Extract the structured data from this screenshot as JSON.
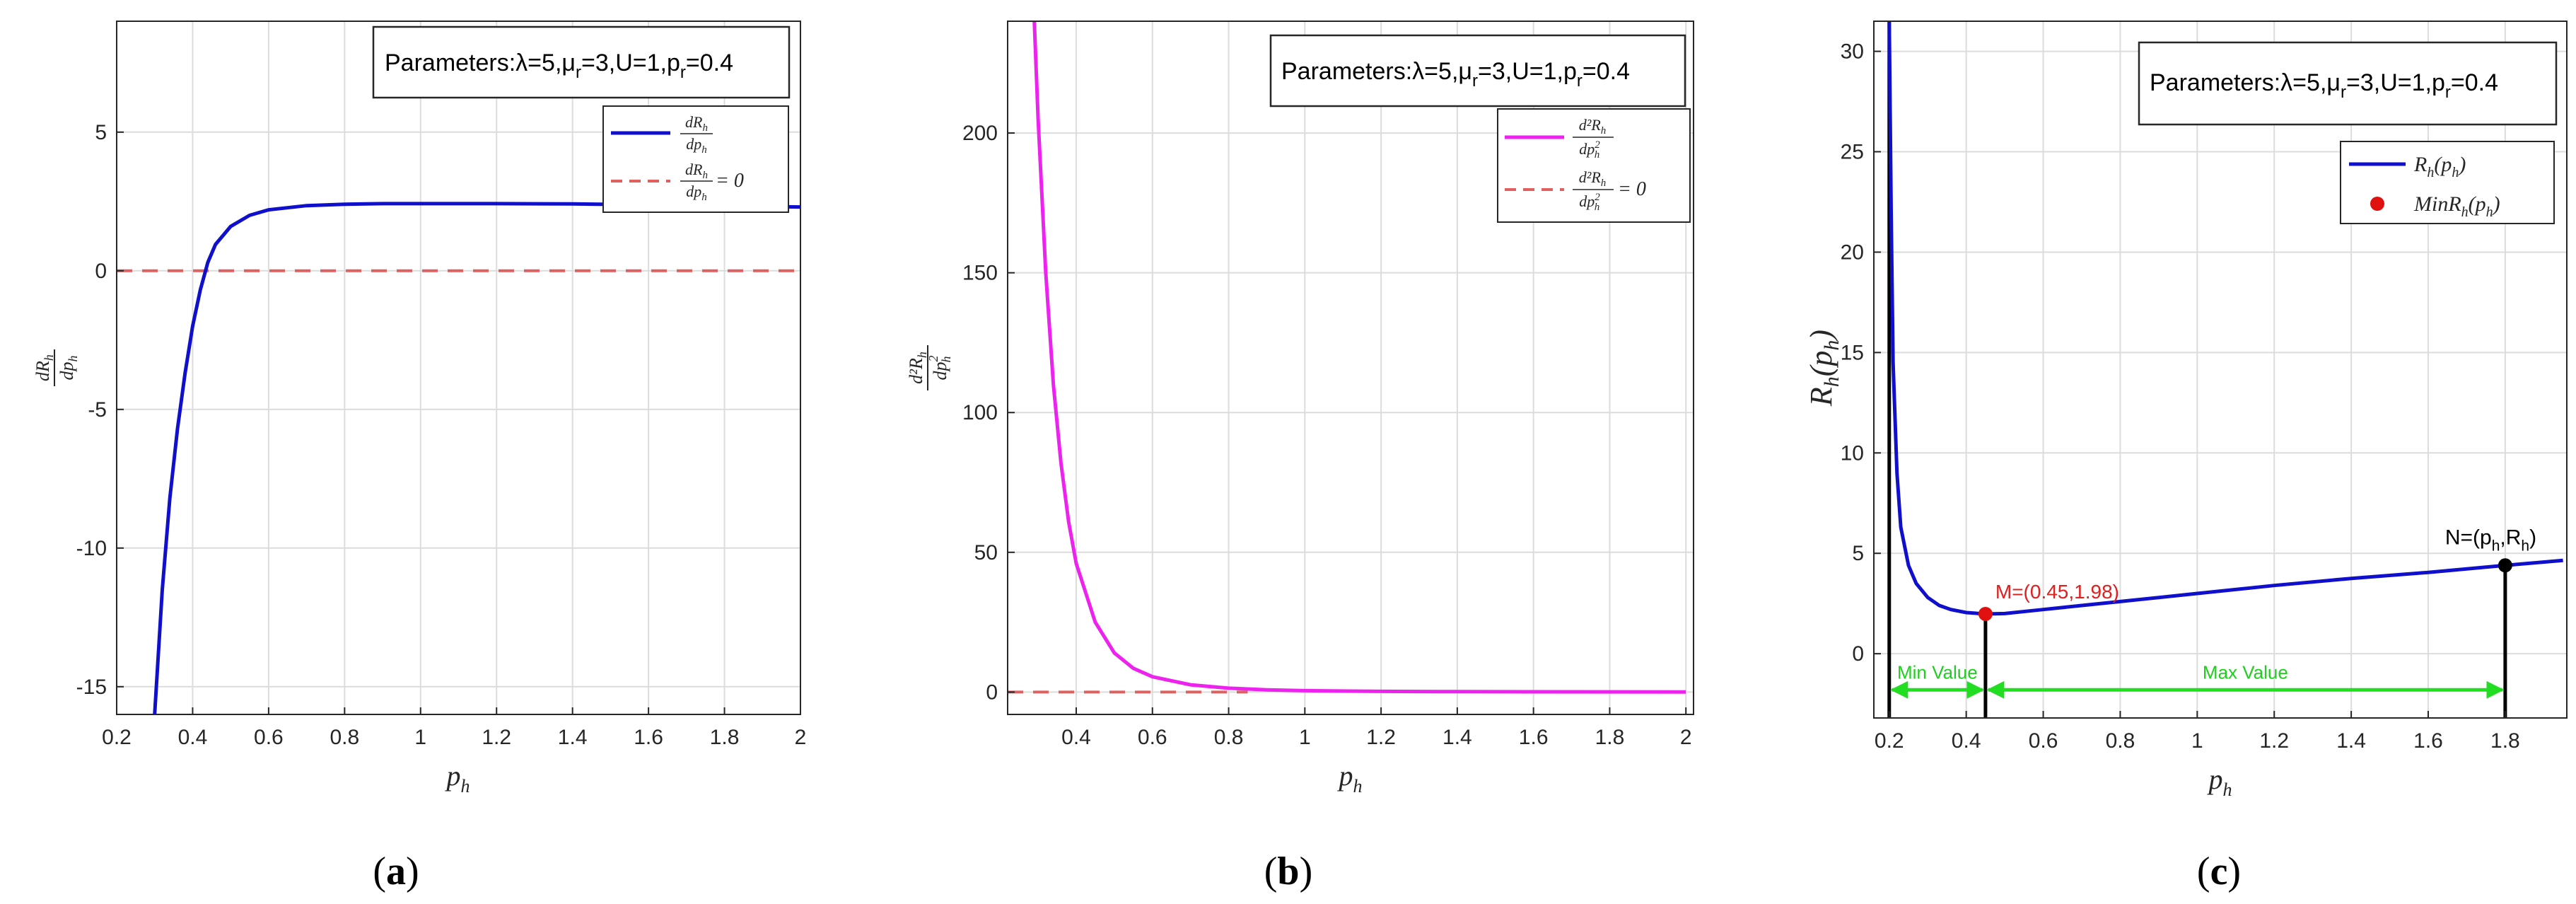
{
  "panels": [
    {
      "id": "a",
      "caption": {
        "open": "(",
        "letter": "a",
        "close": ")"
      },
      "params": {
        "prefix": "Parameters:λ=5,μ",
        "sub1": "r",
        "mid": "=3,U=1,p",
        "sub2": "r",
        "suffix": "=0.4"
      },
      "xlabel": {
        "base": "p",
        "sub": "h"
      },
      "ylabel": {
        "num_base": "dR",
        "num_sub": "h",
        "den_base": "dp",
        "den_sub": "h"
      },
      "legend": [
        {
          "type": "line",
          "num_base": "dR",
          "num_sub": "h",
          "den_base": "dp",
          "den_sub": "h",
          "tail": ""
        },
        {
          "type": "dashed",
          "num_base": "dR",
          "num_sub": "h",
          "den_base": "dp",
          "den_sub": "h",
          "tail": " = 0"
        }
      ],
      "xticks": [
        "0.2",
        "0.4",
        "0.6",
        "0.8",
        "1",
        "1.2",
        "1.4",
        "1.6",
        "1.8",
        "2"
      ],
      "yticks": [
        "5",
        "0",
        "-5",
        "-10",
        "-15"
      ]
    },
    {
      "id": "b",
      "caption": {
        "open": "(",
        "letter": "b",
        "close": ")"
      },
      "params": {
        "prefix": "Parameters:λ=5,μ",
        "sub1": "r",
        "mid": "=3,U=1,p",
        "sub2": "r",
        "suffix": "=0.4"
      },
      "xlabel": {
        "base": "p",
        "sub": "h"
      },
      "ylabel": {
        "num_base": "d²R",
        "num_sub": "h",
        "den_base": "dp",
        "den_sub": "h",
        "den_sup": "2"
      },
      "legend": [
        {
          "type": "line",
          "num_base": "d²R",
          "num_sub": "h",
          "den_base": "dp",
          "den_sub": "h",
          "den_sup": "2",
          "tail": ""
        },
        {
          "type": "dashed",
          "num_base": "d²R",
          "num_sub": "h",
          "den_base": "dp",
          "den_sub": "h",
          "den_sup": "2",
          "tail": " = 0"
        }
      ],
      "xticks": [
        "0.4",
        "0.6",
        "0.8",
        "1",
        "1.2",
        "1.4",
        "1.6",
        "1.8",
        "2"
      ],
      "yticks": [
        "200",
        "150",
        "100",
        "50",
        "0"
      ]
    },
    {
      "id": "c",
      "caption": {
        "open": "(",
        "letter": "c",
        "close": ")"
      },
      "params": {
        "prefix": "Parameters:λ=5,μ",
        "sub1": "r",
        "mid": "=3,U=1,p",
        "sub2": "r",
        "suffix": "=0.4"
      },
      "xlabel": {
        "base": "p",
        "sub": "h"
      },
      "ylabel": {
        "base": "R",
        "sub": "h",
        "arg_base": "p",
        "arg_sub": "h"
      },
      "legend": [
        {
          "type": "line",
          "base": "R",
          "sub": "h",
          "arg_base": "p",
          "arg_sub": "h",
          "prefix": ""
        },
        {
          "type": "dot",
          "base": "R",
          "sub": "h",
          "arg_base": "p",
          "arg_sub": "h",
          "prefix": "Min"
        }
      ],
      "xticks": [
        "0.2",
        "0.4",
        "0.6",
        "0.8",
        "1",
        "1.2",
        "1.4",
        "1.6",
        "1.8"
      ],
      "yticks": [
        "30",
        "25",
        "20",
        "15",
        "10",
        "5",
        "0"
      ],
      "annotations": {
        "m_label": "M=(0.45,1.98)",
        "n_prefix": "N=(p",
        "n_sub1": "h",
        "n_mid": ",R",
        "n_sub2": "h",
        "n_suffix": ")",
        "min_value": "Min Value",
        "max_value": "Max Value"
      }
    }
  ],
  "chart_data": [
    {
      "type": "line",
      "title": "",
      "x": [
        0.3,
        0.32,
        0.34,
        0.36,
        0.38,
        0.4,
        0.42,
        0.44,
        0.46,
        0.5,
        0.55,
        0.6,
        0.7,
        0.8,
        0.9,
        1.0,
        1.2,
        1.4,
        1.6,
        1.8,
        2.0
      ],
      "series": [
        {
          "name": "dR_h/dp_h",
          "values": [
            -16.0,
            -11.5,
            -8.2,
            -5.7,
            -3.7,
            -2.0,
            -0.7,
            0.3,
            0.95,
            1.6,
            2.0,
            2.2,
            2.35,
            2.4,
            2.42,
            2.42,
            2.42,
            2.41,
            2.38,
            2.34,
            2.3
          ]
        },
        {
          "name": "dR_h/dp_h = 0",
          "values": [
            0,
            0,
            0,
            0,
            0,
            0,
            0,
            0,
            0,
            0,
            0,
            0,
            0,
            0,
            0,
            0,
            0,
            0,
            0,
            0,
            0
          ]
        }
      ],
      "xlim": [
        0.2,
        2.0
      ],
      "ylim": [
        -16,
        9
      ],
      "grid": true,
      "legend_position": "top-right",
      "colors": {
        "curve": "#1010cc",
        "zero": "#e06060"
      }
    },
    {
      "type": "line",
      "title": "",
      "x": [
        0.29,
        0.3,
        0.32,
        0.34,
        0.36,
        0.38,
        0.4,
        0.45,
        0.5,
        0.55,
        0.6,
        0.7,
        0.8,
        0.9,
        1.0,
        1.2,
        1.4,
        1.6,
        1.8,
        2.0
      ],
      "series": [
        {
          "name": "d2R_h/dp_h2",
          "values": [
            240,
            205,
            150,
            110,
            82,
            61,
            46,
            25,
            14,
            8.5,
            5.5,
            2.6,
            1.4,
            0.8,
            0.5,
            0.25,
            0.15,
            0.1,
            0.07,
            0.05
          ]
        },
        {
          "name": "d2R_h/dp_h2 = 0",
          "values": [
            0,
            0,
            0,
            0,
            0,
            0,
            0,
            0,
            0,
            0,
            0,
            0,
            0,
            0,
            0,
            0,
            0,
            0,
            0,
            0
          ]
        }
      ],
      "xlim": [
        0.22,
        2.02
      ],
      "ylim": [
        -8,
        240
      ],
      "grid": true,
      "legend_position": "top-right",
      "colors": {
        "curve": "#ee22ee",
        "zero": "#e06060"
      }
    },
    {
      "type": "line",
      "title": "",
      "x": [
        0.2,
        0.205,
        0.21,
        0.22,
        0.23,
        0.25,
        0.27,
        0.3,
        0.33,
        0.36,
        0.4,
        0.45,
        0.5,
        0.6,
        0.7,
        0.8,
        1.0,
        1.2,
        1.4,
        1.6,
        1.8,
        1.95
      ],
      "series": [
        {
          "name": "R_h(p_h)",
          "values": [
            31.5,
            22,
            14.5,
            9,
            6.3,
            4.4,
            3.5,
            2.8,
            2.4,
            2.2,
            2.05,
            1.98,
            2.0,
            2.2,
            2.4,
            2.6,
            3.0,
            3.4,
            3.75,
            4.05,
            4.4,
            4.65
          ]
        },
        {
          "name": "MinR_h(p_h)",
          "points": [
            {
              "x": 0.45,
              "y": 1.98
            }
          ]
        }
      ],
      "special_points": [
        {
          "label": "M",
          "x": 0.45,
          "y": 1.98
        },
        {
          "label": "N",
          "x": 1.8,
          "y": 4.4
        }
      ],
      "vlines": [
        0.2,
        0.45,
        1.8
      ],
      "xlim": [
        0.16,
        1.96
      ],
      "ylim": [
        -3.2,
        31.5
      ],
      "grid": true,
      "legend_position": "top-right",
      "colors": {
        "curve": "#1010cc",
        "min_point": "#e01010",
        "n_point": "#000000",
        "arrows": "#22dd22",
        "m_label": "#dd2020"
      }
    }
  ]
}
